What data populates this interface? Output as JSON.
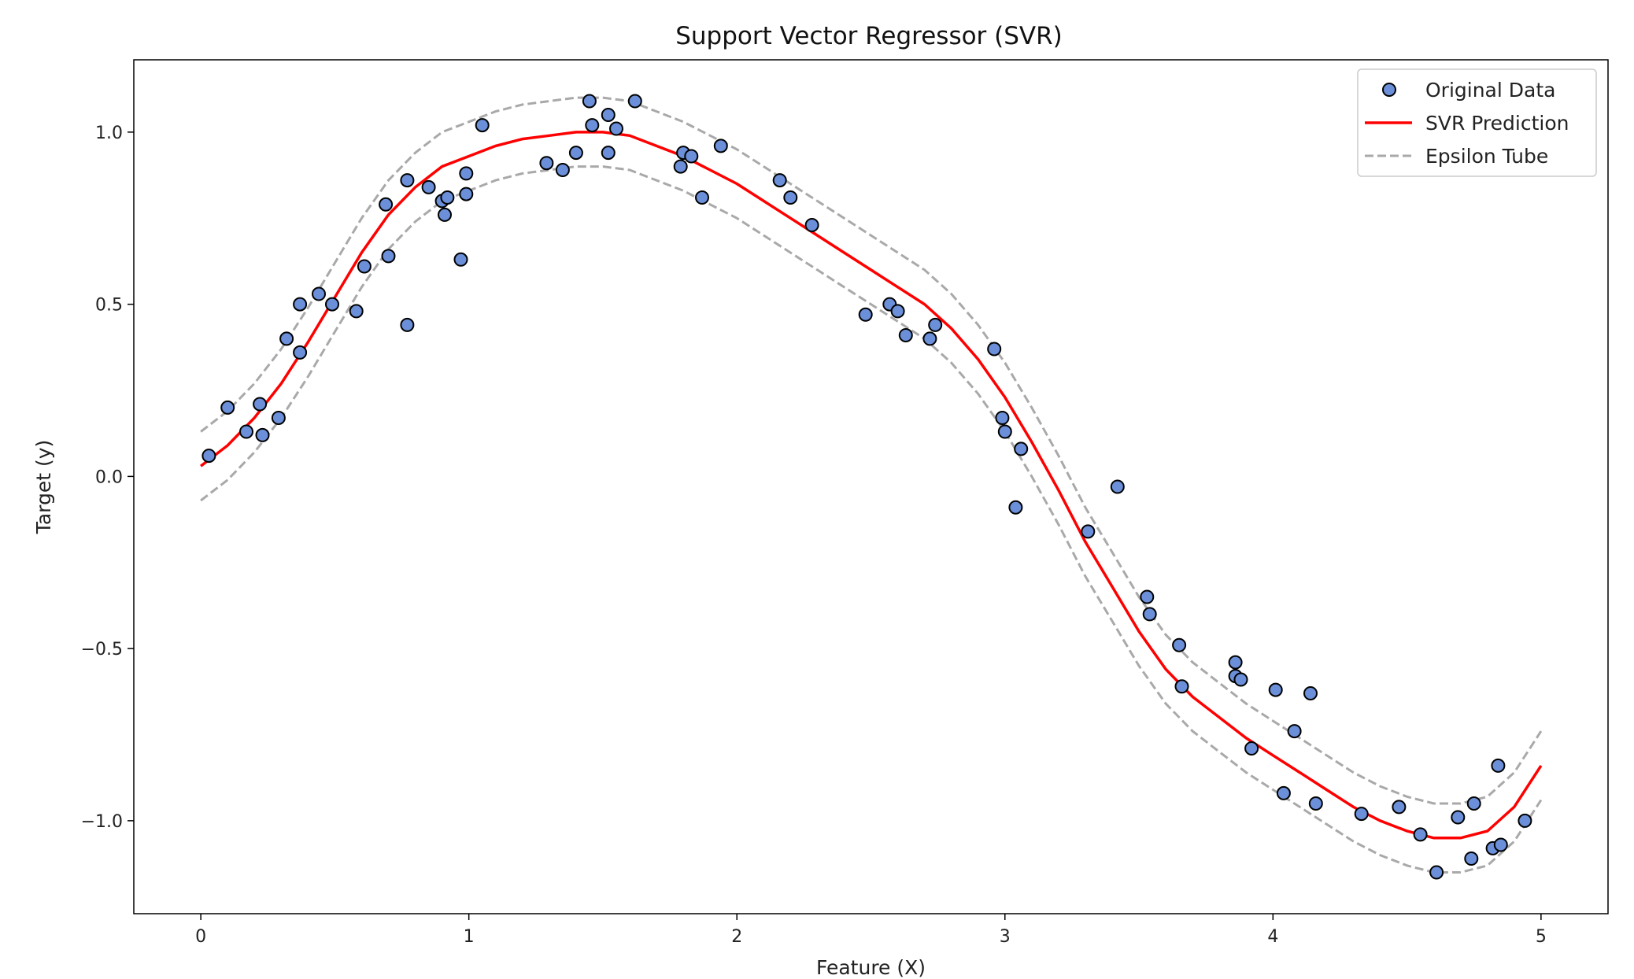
{
  "chart_data": {
    "type": "scatter",
    "title": "Support Vector Regressor (SVR)",
    "xlabel": "Feature (X)",
    "ylabel": "Target (y)",
    "xlim": [
      -0.25,
      5.25
    ],
    "ylim": [
      -1.27,
      1.21
    ],
    "xticks": [
      0,
      1,
      2,
      3,
      4,
      5
    ],
    "xtick_labels": [
      "0",
      "1",
      "2",
      "3",
      "4",
      "5"
    ],
    "yticks": [
      -1.0,
      -0.5,
      0.0,
      0.5,
      1.0
    ],
    "ytick_labels": [
      "−1.0",
      "−0.5",
      "0.0",
      "0.5",
      "1.0"
    ],
    "grid": false,
    "legend_position": "top-right",
    "epsilon": 0.1,
    "colors": {
      "points_fill": "#6b8fd8",
      "points_edge": "#000000",
      "prediction": "#ff0000",
      "tube": "#a9a9a9"
    },
    "series": [
      {
        "name": "Original Data",
        "kind": "scatter",
        "x": [
          0.03,
          0.1,
          0.17,
          0.22,
          0.23,
          0.29,
          0.32,
          0.37,
          0.37,
          0.44,
          0.49,
          0.58,
          0.61,
          0.69,
          0.7,
          0.77,
          0.77,
          0.85,
          0.9,
          0.91,
          0.92,
          0.97,
          0.99,
          0.99,
          1.05,
          1.29,
          1.35,
          1.4,
          1.45,
          1.46,
          1.52,
          1.52,
          1.55,
          1.62,
          1.79,
          1.8,
          1.83,
          1.87,
          1.94,
          2.16,
          2.2,
          2.28,
          2.48,
          2.57,
          2.6,
          2.63,
          2.72,
          2.74,
          2.96,
          2.99,
          3.0,
          3.04,
          3.06,
          3.31,
          3.42,
          3.53,
          3.54,
          3.65,
          3.66,
          3.86,
          3.86,
          3.88,
          3.92,
          4.01,
          4.04,
          4.08,
          4.14,
          4.16,
          4.33,
          4.47,
          4.55,
          4.61,
          4.69,
          4.74,
          4.75,
          4.82,
          4.84,
          4.85,
          4.94
        ],
        "y": [
          0.06,
          0.2,
          0.13,
          0.21,
          0.12,
          0.17,
          0.4,
          0.36,
          0.5,
          0.53,
          0.5,
          0.48,
          0.61,
          0.79,
          0.64,
          0.86,
          0.44,
          0.84,
          0.8,
          0.76,
          0.81,
          0.63,
          0.88,
          0.82,
          1.02,
          0.91,
          0.89,
          0.94,
          1.09,
          1.02,
          1.05,
          0.94,
          1.01,
          1.09,
          0.9,
          0.94,
          0.93,
          0.81,
          0.96,
          0.86,
          0.81,
          0.73,
          0.47,
          0.5,
          0.48,
          0.41,
          0.4,
          0.44,
          0.37,
          0.17,
          0.13,
          -0.09,
          0.08,
          -0.16,
          -0.03,
          -0.35,
          -0.4,
          -0.49,
          -0.61,
          -0.54,
          -0.58,
          -0.59,
          -0.79,
          -0.62,
          -0.92,
          -0.74,
          -0.63,
          -0.95,
          -0.98,
          -0.96,
          -1.04,
          -1.15,
          -0.99,
          -1.11,
          -0.95,
          -1.08,
          -0.84,
          -1.07,
          -1.0
        ]
      },
      {
        "name": "SVR Prediction",
        "kind": "line",
        "x": [
          0,
          0.1,
          0.2,
          0.3,
          0.4,
          0.5,
          0.6,
          0.7,
          0.8,
          0.9,
          1.0,
          1.1,
          1.2,
          1.3,
          1.4,
          1.5,
          1.6,
          1.7,
          1.8,
          1.9,
          2.0,
          2.1,
          2.2,
          2.3,
          2.4,
          2.5,
          2.6,
          2.7,
          2.8,
          2.9,
          3.0,
          3.1,
          3.2,
          3.3,
          3.4,
          3.5,
          3.6,
          3.7,
          3.8,
          3.9,
          4.0,
          4.1,
          4.2,
          4.3,
          4.4,
          4.5,
          4.6,
          4.7,
          4.8,
          4.9,
          5.0
        ],
        "y": [
          0.03,
          0.09,
          0.17,
          0.27,
          0.39,
          0.52,
          0.65,
          0.76,
          0.84,
          0.9,
          0.93,
          0.96,
          0.98,
          0.99,
          1.0,
          1.0,
          0.99,
          0.96,
          0.93,
          0.89,
          0.85,
          0.8,
          0.75,
          0.7,
          0.65,
          0.6,
          0.55,
          0.5,
          0.43,
          0.34,
          0.23,
          0.1,
          -0.04,
          -0.19,
          -0.32,
          -0.45,
          -0.56,
          -0.64,
          -0.7,
          -0.76,
          -0.81,
          -0.86,
          -0.91,
          -0.96,
          -1.0,
          -1.03,
          -1.05,
          -1.05,
          -1.03,
          -0.96,
          -0.84
        ]
      },
      {
        "name": "Epsilon Tube",
        "kind": "band",
        "offset": 0.1
      }
    ]
  }
}
